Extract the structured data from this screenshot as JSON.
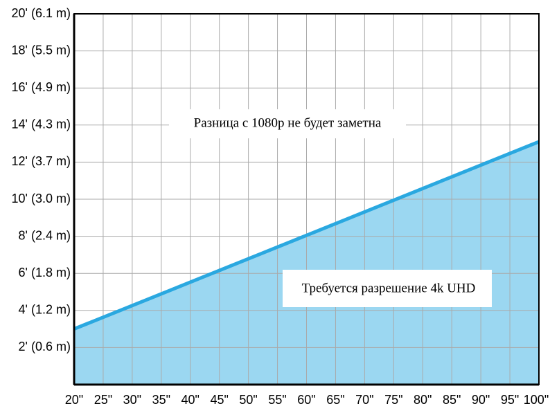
{
  "chart_data": {
    "type": "area",
    "x": [
      20,
      100
    ],
    "series": [
      {
        "color": "#2aa8e0",
        "fill": "#9bd7f1",
        "values": [
          3,
          13.1
        ]
      }
    ],
    "xlim": [
      20,
      100
    ],
    "xticks": [
      {
        "value": 20,
        "label": "20\""
      },
      {
        "value": 25,
        "label": "25\""
      },
      {
        "value": 30,
        "label": "30\""
      },
      {
        "value": 35,
        "label": "35\""
      },
      {
        "value": 40,
        "label": "40\""
      },
      {
        "value": 45,
        "label": "45\""
      },
      {
        "value": 50,
        "label": "50\""
      },
      {
        "value": 55,
        "label": "55\""
      },
      {
        "value": 60,
        "label": "60\""
      },
      {
        "value": 65,
        "label": "65\""
      },
      {
        "value": 70,
        "label": "70\""
      },
      {
        "value": 75,
        "label": "75\""
      },
      {
        "value": 80,
        "label": "80\""
      },
      {
        "value": 85,
        "label": "85\""
      },
      {
        "value": 90,
        "label": "90\""
      },
      {
        "value": 95,
        "label": "95\""
      },
      {
        "value": 100,
        "label": "100\""
      }
    ],
    "ylim": [
      0,
      20
    ],
    "yticks": [
      {
        "value": 2,
        "label": "2' (0.6 m)"
      },
      {
        "value": 4,
        "label": "4' (1.2 m)"
      },
      {
        "value": 6,
        "label": "6' (1.8 m)"
      },
      {
        "value": 8,
        "label": "8' (2.4 m)"
      },
      {
        "value": 10,
        "label": "10' (3.0 m)"
      },
      {
        "value": 12,
        "label": "12' (3.7 m)"
      },
      {
        "value": 14,
        "label": "14' (4.3 m)"
      },
      {
        "value": 16,
        "label": "16' (4.9 m)"
      },
      {
        "value": 18,
        "label": "18' (5.5 m)"
      },
      {
        "value": 20,
        "label": "20' (6.1 m)"
      }
    ],
    "grid": true,
    "annotations": [
      "Разница с 1080p не будет заметна",
      "Требуется разрешение 4k UHD"
    ]
  }
}
